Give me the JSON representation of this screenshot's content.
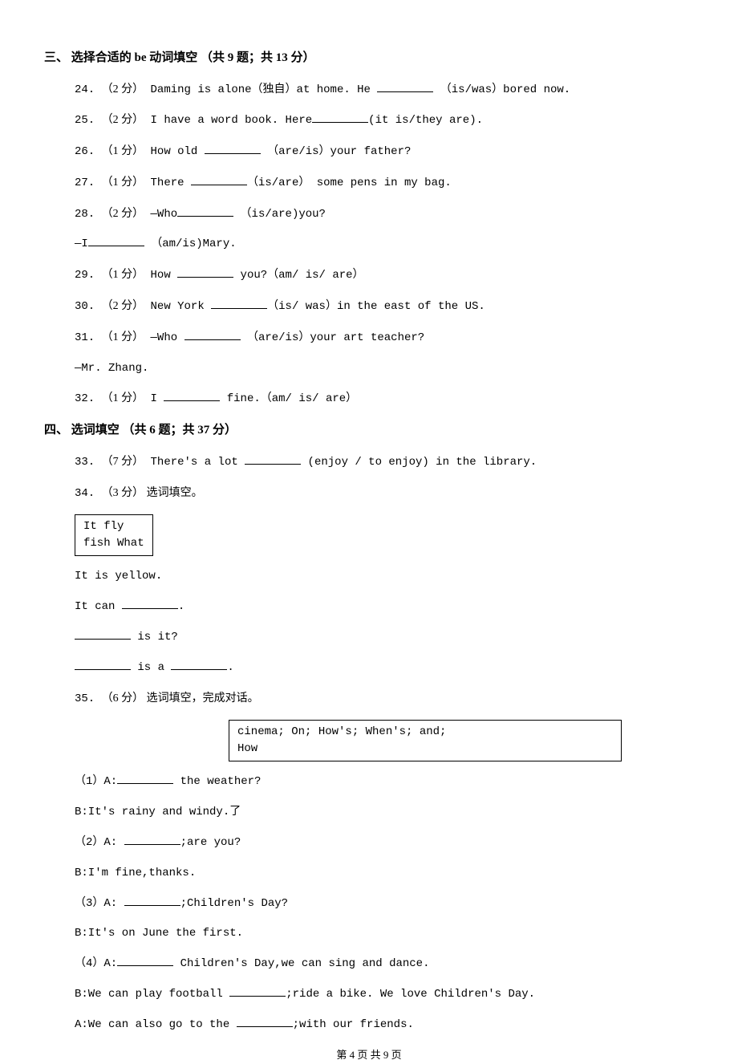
{
  "section3": {
    "header": "三、 选择合适的 be 动词填空 （共 9 题；共 13 分）",
    "questions": [
      {
        "num": "24.",
        "points": "（2 分）",
        "text_before": " Daming is alone（独自）at home. He ",
        "text_after": " （is/was）bored now."
      },
      {
        "num": "25.",
        "points": "（2 分）",
        "text_before": " I have a word book. Here",
        "text_after": "(it is/they are)."
      },
      {
        "num": "26.",
        "points": "（1 分）",
        "text_before": " How old ",
        "text_after": " （are/is）your father?"
      },
      {
        "num": "27.",
        "points": "（1 分）",
        "text_before": " There ",
        "text_after": "（is/are） some pens in my bag."
      },
      {
        "num": "28.",
        "points": "（2 分）",
        "text_before": " —Who",
        "text_after": " （is/are)you?",
        "cont_before": "—I",
        "cont_after": " （am/is)Mary."
      },
      {
        "num": "29.",
        "points": "（1 分）",
        "text_before": " How ",
        "text_after": " you?（am/ is/ are）"
      },
      {
        "num": "30.",
        "points": "（2 分）",
        "text_before": " New York ",
        "text_after": "（is/ was）in the east of the US."
      },
      {
        "num": "31.",
        "points": "（1 分）",
        "text_before": " —Who ",
        "text_after": " （are/is）your art teacher?",
        "cont_text": "—Mr. Zhang."
      },
      {
        "num": "32.",
        "points": "（1 分）",
        "text_before": " I ",
        "text_after": " fine.（am/ is/ are）"
      }
    ]
  },
  "section4": {
    "header": "四、 选词填空 （共 6 题；共 37 分）",
    "q33": {
      "num": "33.",
      "points": "（7 分）",
      "text_before": " There's a lot ",
      "text_after": " (enjoy / to enjoy) in the library."
    },
    "q34": {
      "num": "34.",
      "points": "（3 分）",
      "title": " 选词填空。",
      "box_row1": "  It          fly",
      "box_row2": " fish    What",
      "lines": [
        {
          "text": "It is yellow."
        },
        {
          "before": "It can ",
          "blank": true,
          "after": "."
        },
        {
          "blank_first": true,
          "after": " is it?"
        },
        {
          "blank_first": true,
          "middle": " is a ",
          "blank_second": true,
          "after": "."
        }
      ]
    },
    "q35": {
      "num": "35.",
      "points": "（6 分）",
      "title": " 选词填空，完成对话。",
      "box_row1": "cinema;     On;       How's;      When's;     and;",
      "box_row2": "  How",
      "dialogs": [
        {
          "q_num": "（1）",
          "q_before": "A:",
          "q_after": " the weather?",
          "a": "B:It's rainy and windy.了"
        },
        {
          "q_num": "（2）",
          "q_before": "A: ",
          "q_after": ";are you?",
          "a": "B:I'm fine,thanks."
        },
        {
          "q_num": "（3）",
          "q_before": "A: ",
          "q_after": ";Children's Day?",
          "a": "B:It's on June the first."
        },
        {
          "q_num": "（4）",
          "q_before": "A:",
          "q_after": " Children's Day,we can sing and dance.",
          "a_before": "B:We can play football ",
          "a_after": ";ride a bike. We love Children's Day.",
          "a2_before": "A:We can also go to the ",
          "a2_after": ";with our friends."
        }
      ]
    }
  },
  "footer": "第 4 页 共 9 页"
}
